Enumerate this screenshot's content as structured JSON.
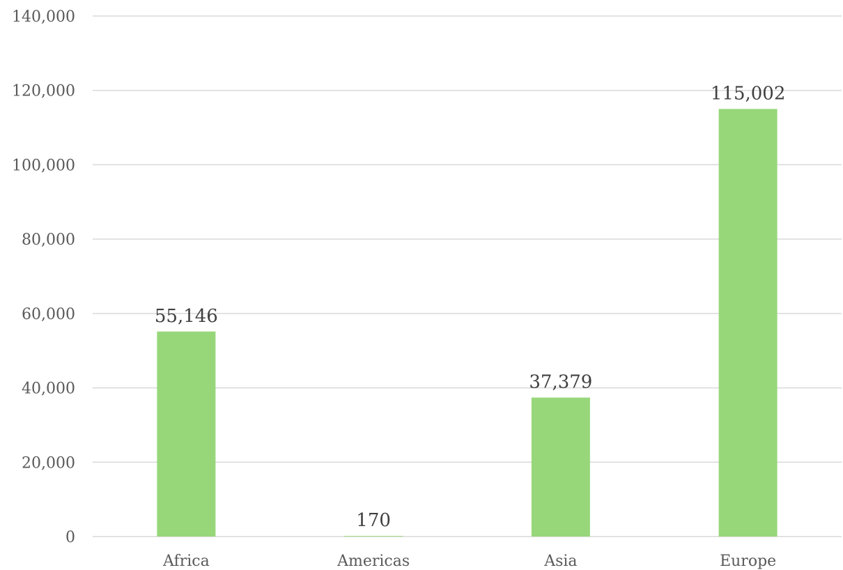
{
  "chart_data": {
    "type": "bar",
    "title": "",
    "xlabel": "",
    "ylabel": "",
    "categories": [
      "Africa",
      "Americas",
      "Asia",
      "Europe"
    ],
    "values": [
      55146,
      170,
      37379,
      115002
    ],
    "data_labels": [
      "55,146",
      "170",
      "37,379",
      "115,002"
    ],
    "ylim": [
      0,
      140000
    ],
    "yticks": [
      0,
      20000,
      40000,
      60000,
      80000,
      100000,
      120000,
      140000
    ],
    "ytick_labels": [
      "0",
      "20,000",
      "40,000",
      "60,000",
      "80,000",
      "100,000",
      "120,000",
      "140,000"
    ],
    "grid": true,
    "legend": "none",
    "bar_color": "#97d77a",
    "grid_color": "#d9d9d9"
  }
}
